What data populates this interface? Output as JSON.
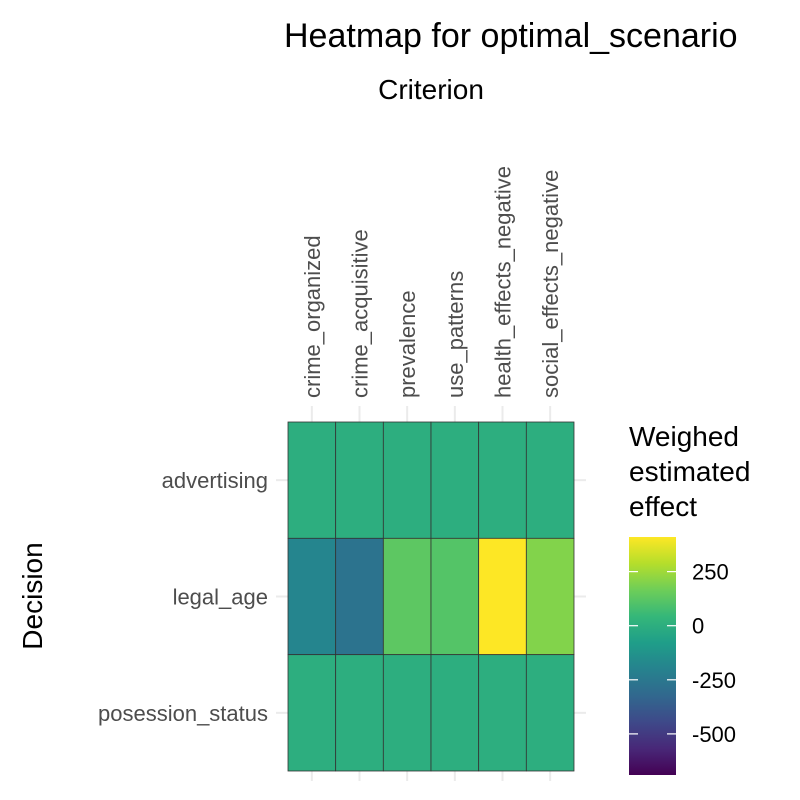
{
  "chart_data": {
    "type": "heatmap",
    "title": "Heatmap for optimal_scenario",
    "xlabel": "Criterion",
    "ylabel": "Decision",
    "columns": [
      "crime_organized",
      "crime_acquisitive",
      "prevalence",
      "use_patterns",
      "health_effects_negative",
      "social_effects_negative"
    ],
    "rows": [
      "advertising",
      "legal_age",
      "posession_status"
    ],
    "values": [
      [
        0,
        0,
        0,
        0,
        0,
        0
      ],
      [
        -190,
        -270,
        130,
        110,
        410,
        200
      ],
      [
        0,
        0,
        0,
        0,
        0,
        0
      ]
    ],
    "legend": {
      "title_lines": [
        "Weighed",
        "estimated",
        "effect"
      ],
      "ticks": [
        250,
        0,
        -250,
        -500
      ],
      "range": [
        -690,
        410
      ],
      "colormap": "viridis",
      "placement": "right"
    },
    "x_axis_position": "top",
    "x_tick_rotation": -90,
    "grid": true
  }
}
